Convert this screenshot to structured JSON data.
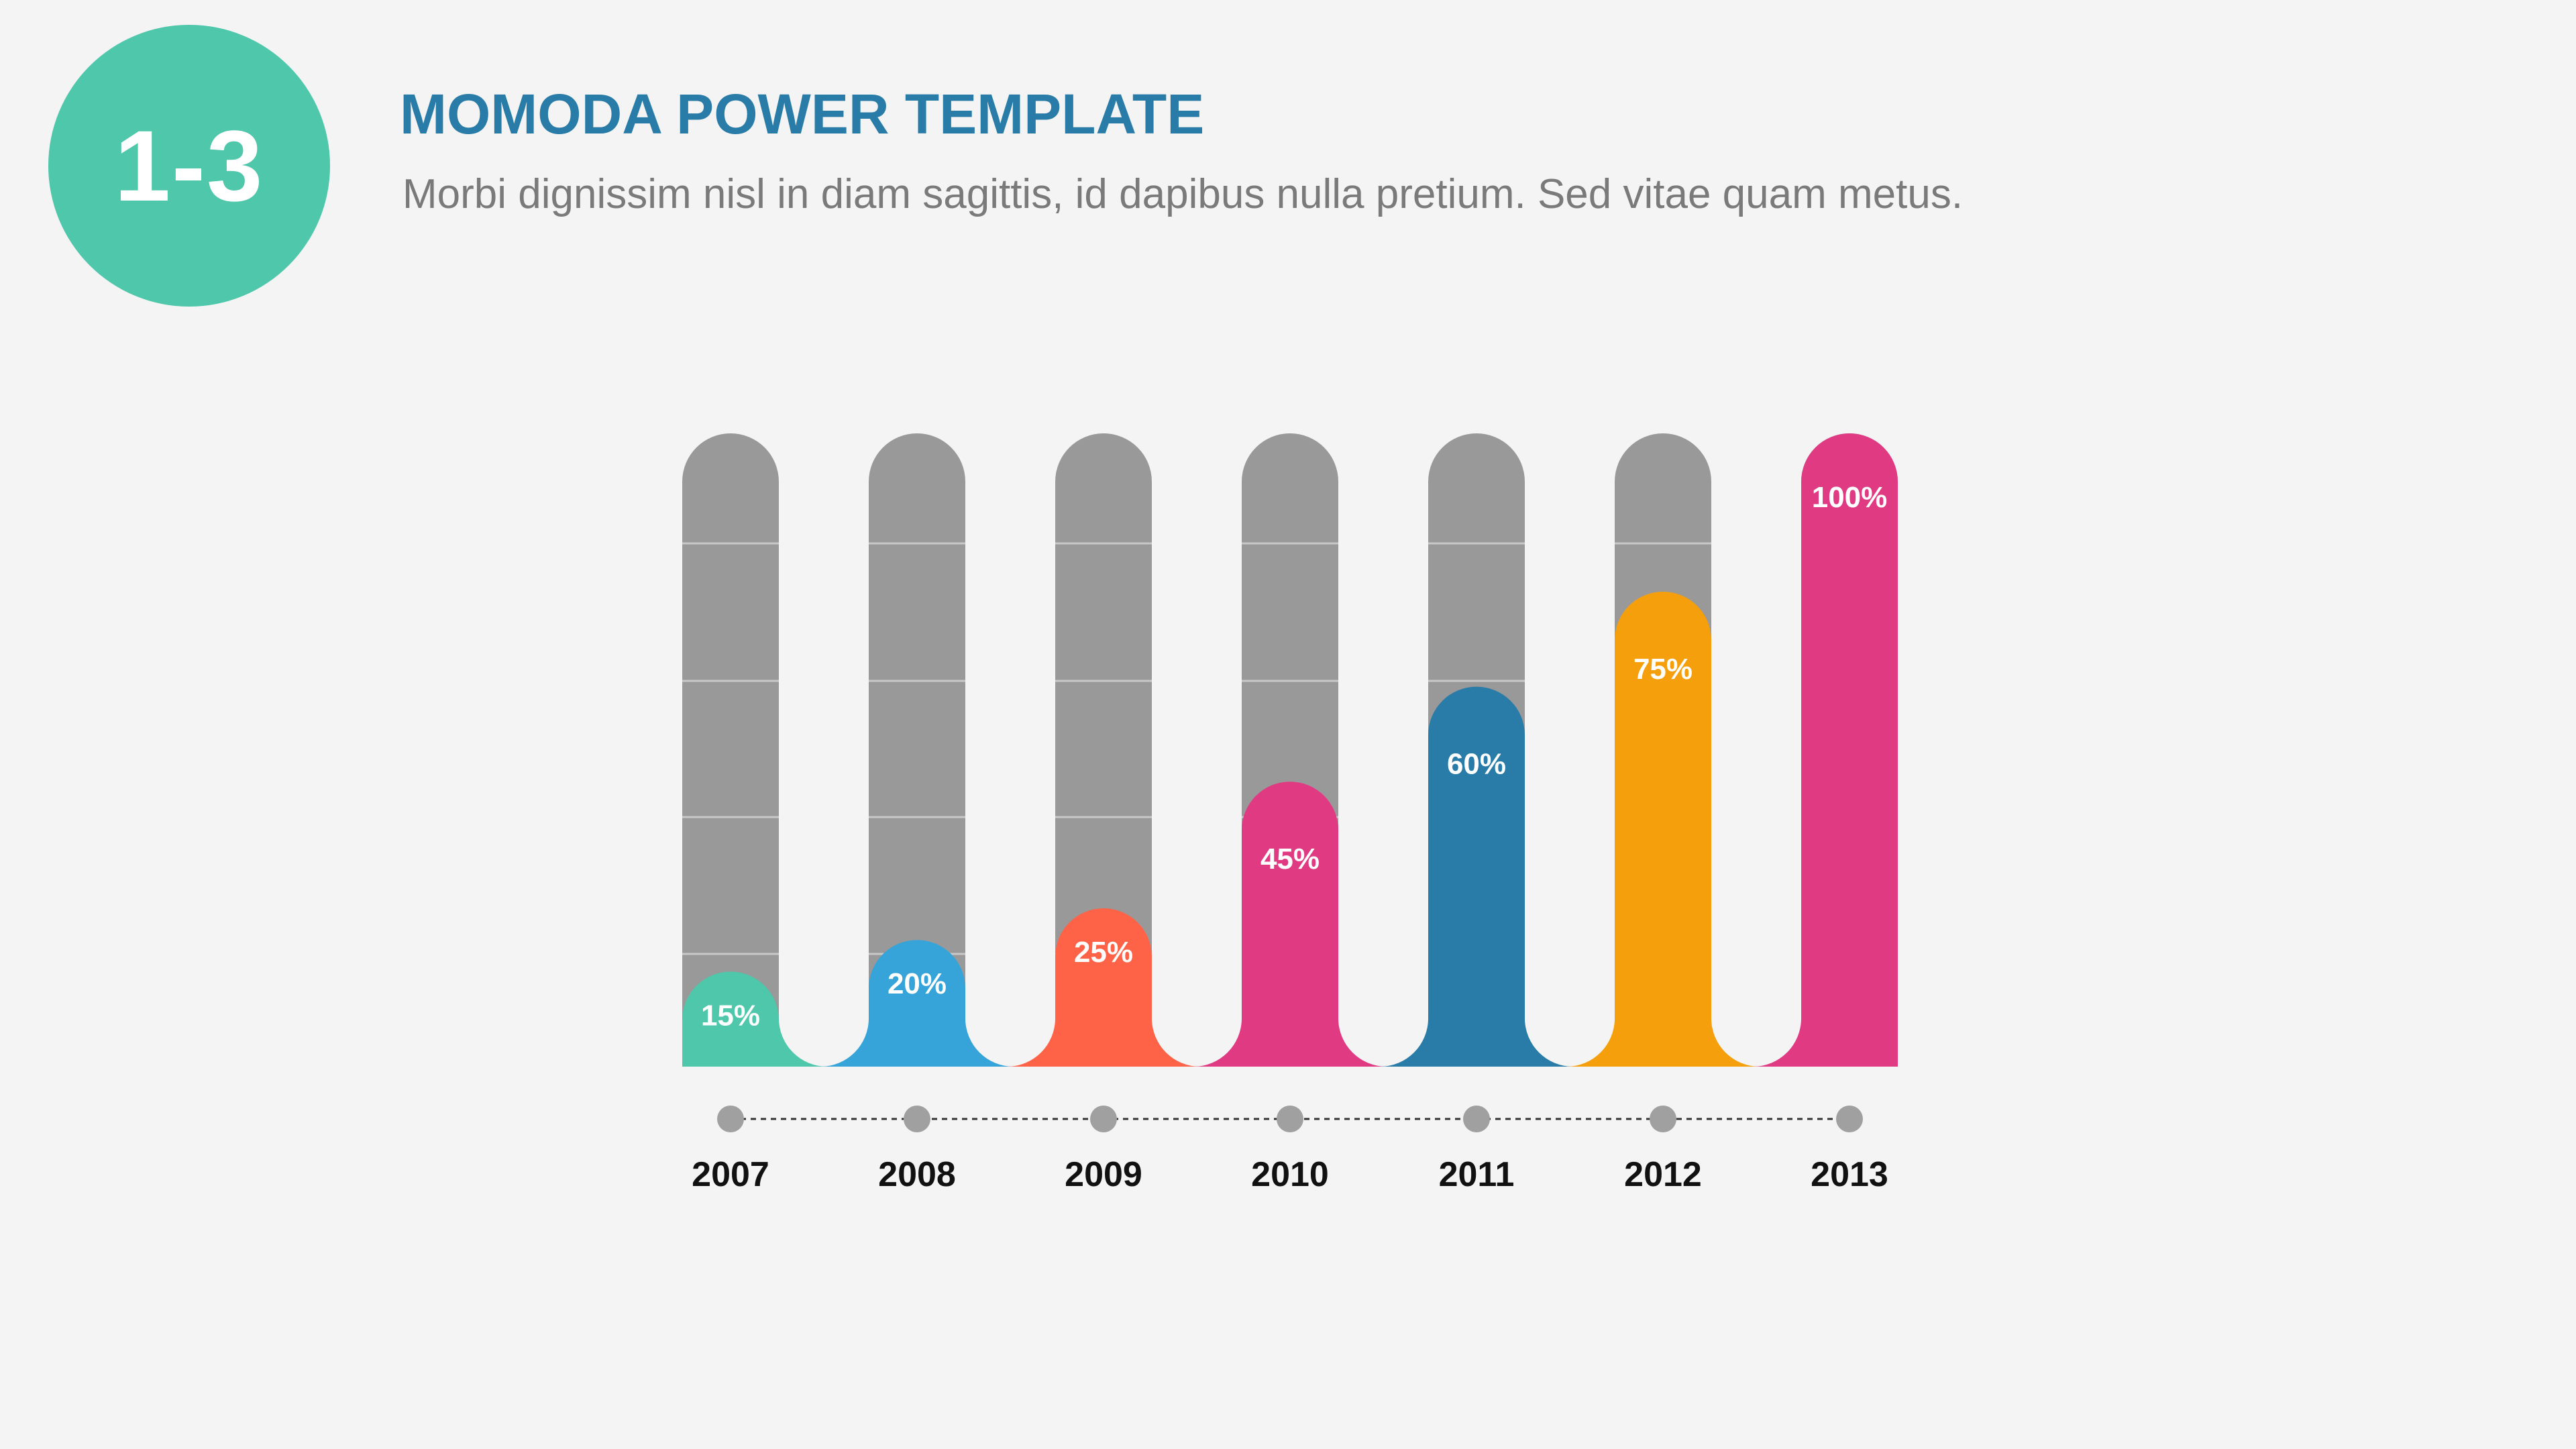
{
  "header": {
    "badge": "1-3",
    "title": "MOMODA POWER TEMPLATE",
    "subtitle": "Morbi dignissim nisl in diam sagittis, id dapibus nulla pretium. Sed vitae quam metus."
  },
  "colors": {
    "background": "#f4f4f4",
    "track": "#999999",
    "badge": "#4ec7aa",
    "title": "#2a7ca8",
    "timeline_dot": "#a0a0a0"
  },
  "chart_data": {
    "type": "bar",
    "categories": [
      "2007",
      "2008",
      "2009",
      "2010",
      "2011",
      "2012",
      "2013"
    ],
    "values": [
      15,
      20,
      25,
      45,
      60,
      75,
      100
    ],
    "labels": [
      "15%",
      "20%",
      "25%",
      "45%",
      "60%",
      "75%",
      "100%"
    ],
    "bar_colors": [
      "#4ec7aa",
      "#36a3d9",
      "#ff6347",
      "#e03a83",
      "#2a7ca8",
      "#f59f0c",
      "#e03a83"
    ],
    "ylim": [
      0,
      100
    ],
    "unit": "%",
    "grid": false
  }
}
